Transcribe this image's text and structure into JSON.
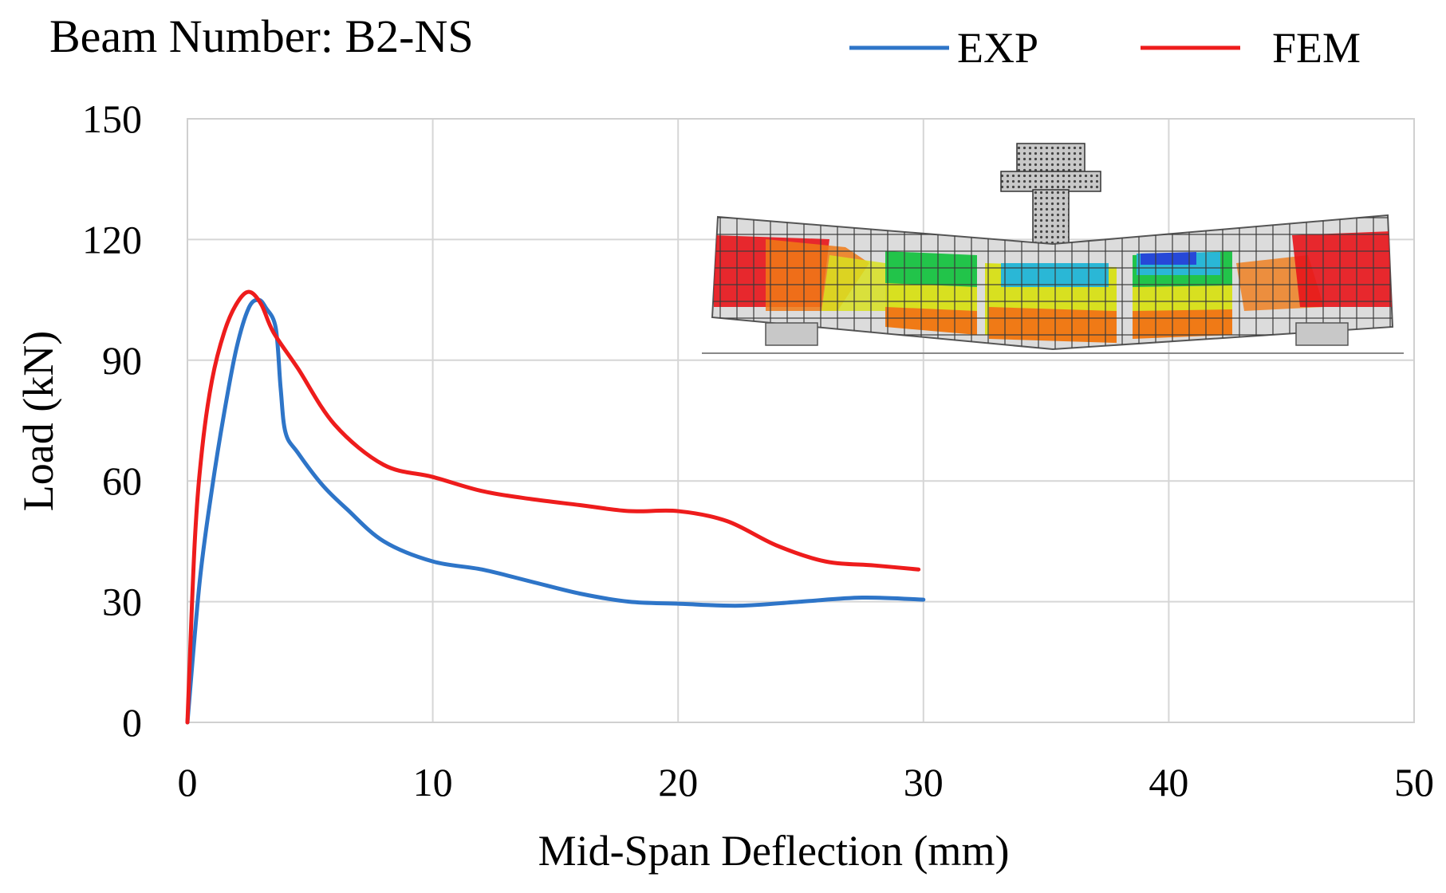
{
  "chart_data": {
    "type": "line",
    "title": "Beam Number: B2-NS",
    "xlabel": "Mid-Span Deflection (mm)",
    "ylabel": "Load (kN)",
    "xlim": [
      0,
      50
    ],
    "ylim": [
      0,
      150
    ],
    "xticks": [
      "0",
      "10",
      "20",
      "30",
      "40",
      "50"
    ],
    "yticks": [
      "0",
      "30",
      "60",
      "90",
      "120",
      "150"
    ],
    "grid": true,
    "legend_position": "top-right",
    "series": [
      {
        "name": "EXP",
        "color": "#2e75c8",
        "x": [
          0,
          0.5,
          1.0,
          1.5,
          2.0,
          2.5,
          2.9,
          3.2,
          3.6,
          3.8,
          4.0,
          4.5,
          5.5,
          6.5,
          8.0,
          10.0,
          12.0,
          14.0,
          16.0,
          18.0,
          20.0,
          22.5,
          25.0,
          27.5,
          30.0
        ],
        "y": [
          0,
          35,
          58,
          77,
          93,
          103,
          105,
          103,
          98,
          83,
          72,
          67,
          59,
          53,
          45,
          40,
          38,
          35,
          32,
          30,
          29.5,
          29,
          30,
          31,
          30.5
        ]
      },
      {
        "name": "FEM",
        "color": "#ee1c1c",
        "x": [
          0,
          0.3,
          0.6,
          1.0,
          1.5,
          2.0,
          2.5,
          3.0,
          3.5,
          4.5,
          6.0,
          8.0,
          10.0,
          12.0,
          14.0,
          16.0,
          18.0,
          20.0,
          22.0,
          24.0,
          26.0,
          28.0,
          29.8
        ],
        "y": [
          0,
          45,
          68,
          85,
          97,
          104,
          107,
          104,
          97,
          88,
          74,
          64,
          61,
          57.5,
          55.5,
          54,
          52.5,
          52.5,
          50,
          44,
          40,
          39,
          38
        ]
      }
    ],
    "inset": {
      "subject": "finite element beam model with loading plate and supports",
      "colors": [
        "#e8141a",
        "#f07a16",
        "#d8e020",
        "#22c44a",
        "#2ab7d6",
        "#2648d8",
        "#dcdcdc"
      ]
    }
  }
}
